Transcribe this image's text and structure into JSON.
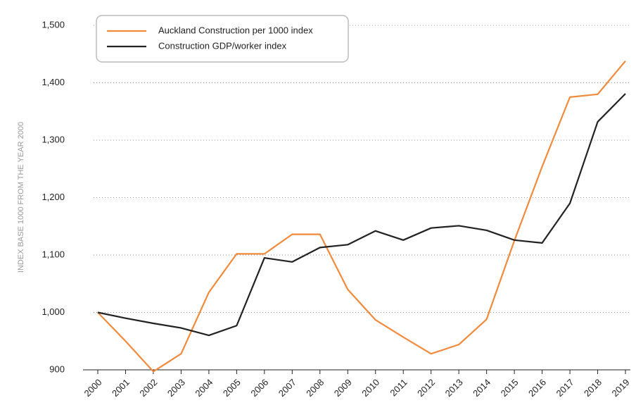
{
  "chart_data": {
    "type": "line",
    "ylabel": "INDEX BASE 1000 FROM THE YEAR 2000",
    "categories": [
      "2000",
      "2001",
      "2002",
      "2003",
      "2004",
      "2005",
      "2006",
      "2007",
      "2008",
      "2009",
      "2010",
      "2011",
      "2012",
      "2013",
      "2014",
      "2015",
      "2016",
      "2017",
      "2018",
      "2019"
    ],
    "series": [
      {
        "name": "Auckland Construction per 1000 index",
        "color": "#f28a3c",
        "values": [
          1000,
          950,
          897,
          928,
          1035,
          1102,
          1102,
          1136,
          1136,
          1040,
          987,
          957,
          928,
          944,
          988,
          1125,
          1254,
          1375,
          1380,
          1438
        ]
      },
      {
        "name": "Construction GDP/worker index",
        "color": "#222222",
        "values": [
          1000,
          990,
          981,
          973,
          960,
          977,
          1095,
          1088,
          1113,
          1118,
          1142,
          1126,
          1147,
          1151,
          1143,
          1126,
          1121,
          1190,
          1332,
          1381
        ]
      }
    ],
    "ylim": [
      900,
      1500
    ],
    "yticks": [
      900,
      {
        "value": 1000,
        "label": "1,000"
      },
      {
        "value": 1100,
        "label": "1,100"
      },
      {
        "value": 1200,
        "label": "1,200"
      },
      {
        "value": 1300,
        "label": "1,300"
      },
      {
        "value": 1400,
        "label": "1,400"
      },
      {
        "value": 1500,
        "label": "1,500"
      }
    ],
    "grid": true,
    "legend": "upper left"
  }
}
